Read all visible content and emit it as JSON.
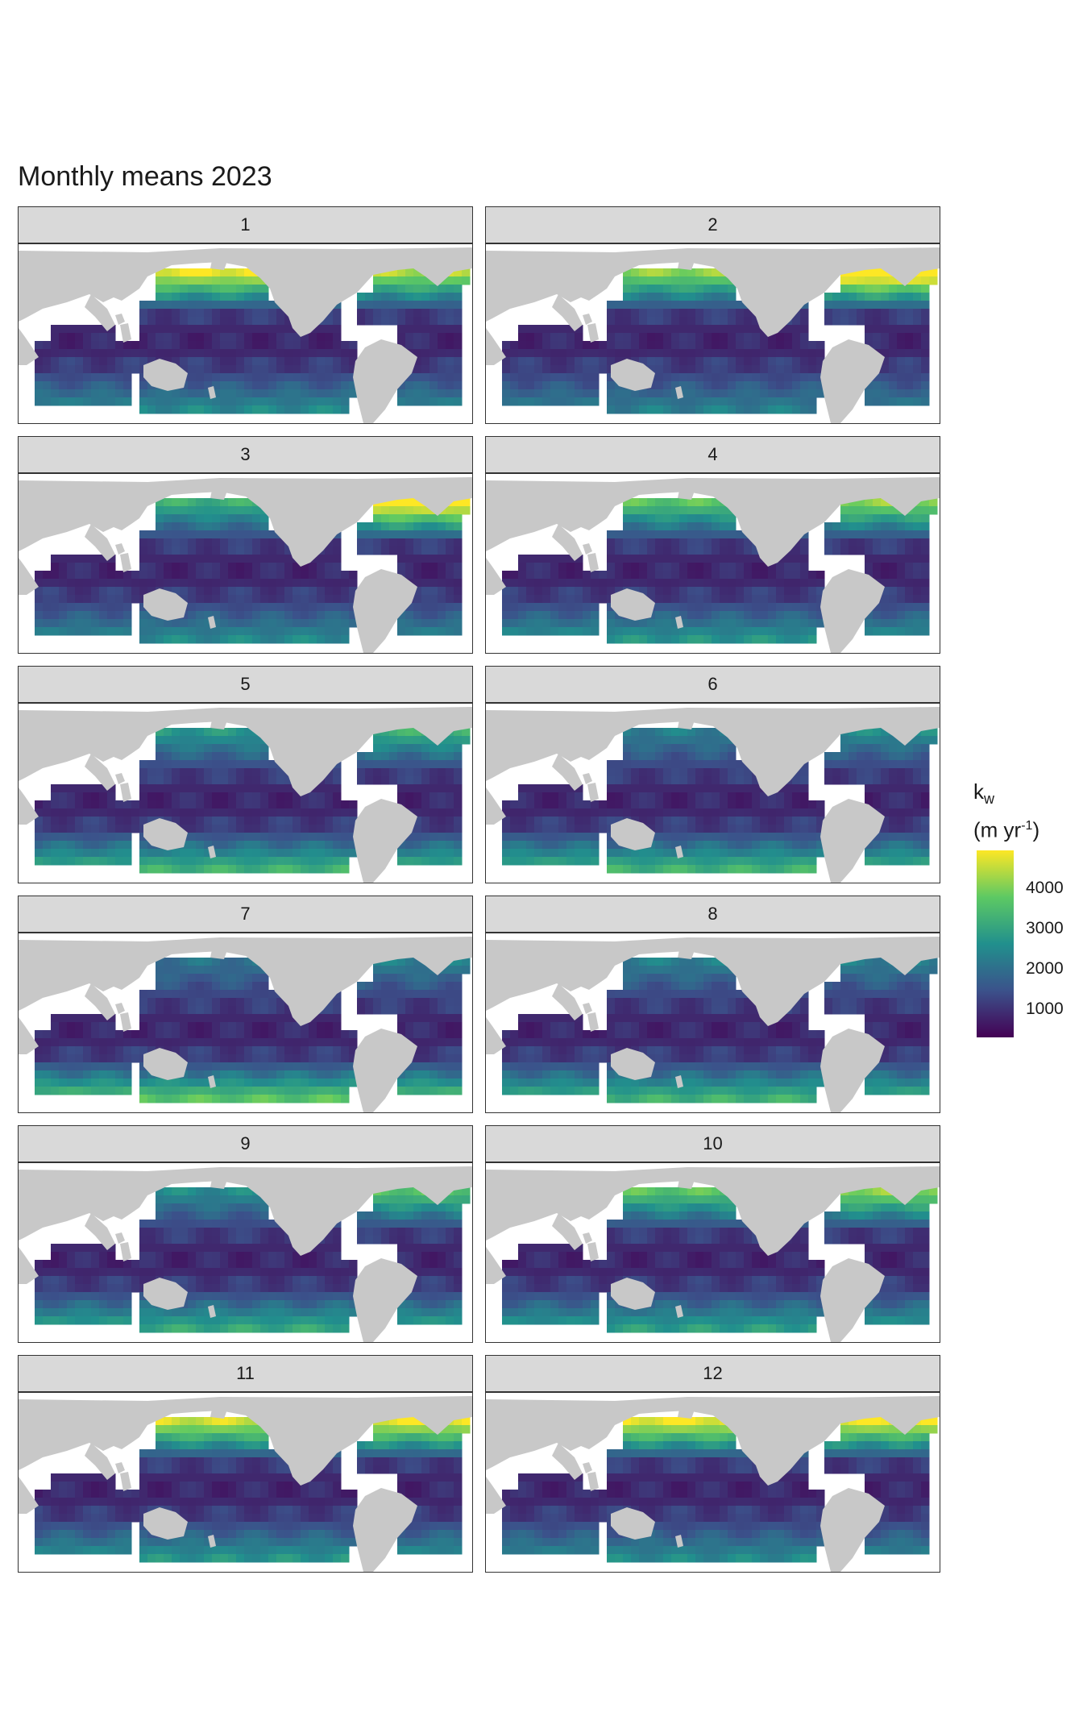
{
  "title": "Monthly means 2023",
  "panels": [
    {
      "label": "1"
    },
    {
      "label": "2"
    },
    {
      "label": "3"
    },
    {
      "label": "4"
    },
    {
      "label": "5"
    },
    {
      "label": "6"
    },
    {
      "label": "7"
    },
    {
      "label": "8"
    },
    {
      "label": "9"
    },
    {
      "label": "10"
    },
    {
      "label": "11"
    },
    {
      "label": "12"
    }
  ],
  "legend": {
    "variable": "k",
    "subscript": "w",
    "unit_open": "(m yr",
    "unit_exp": "-1",
    "unit_close": ")",
    "ticks": [
      "1000",
      "2000",
      "3000",
      "4000"
    ],
    "range": [
      300,
      4950
    ],
    "colors": [
      "#440154",
      "#3b528b",
      "#21908d",
      "#5dc963",
      "#fde725"
    ]
  },
  "colors": {
    "land": "#c8c8c8",
    "ocean_missing": "#ffffff",
    "strip": "#d9d9d9"
  },
  "monthly_intensity": {
    "north_pacific": [
      0.8,
      0.65,
      0.45,
      0.55,
      0.35,
      0.25,
      0.2,
      0.25,
      0.3,
      0.55,
      0.75,
      0.8
    ],
    "north_atlantic": [
      0.7,
      0.95,
      0.9,
      0.65,
      0.45,
      0.3,
      0.25,
      0.25,
      0.55,
      0.65,
      0.8,
      0.8
    ],
    "southern_band": [
      0.35,
      0.3,
      0.35,
      0.4,
      0.55,
      0.55,
      0.65,
      0.55,
      0.5,
      0.45,
      0.4,
      0.35
    ]
  }
}
